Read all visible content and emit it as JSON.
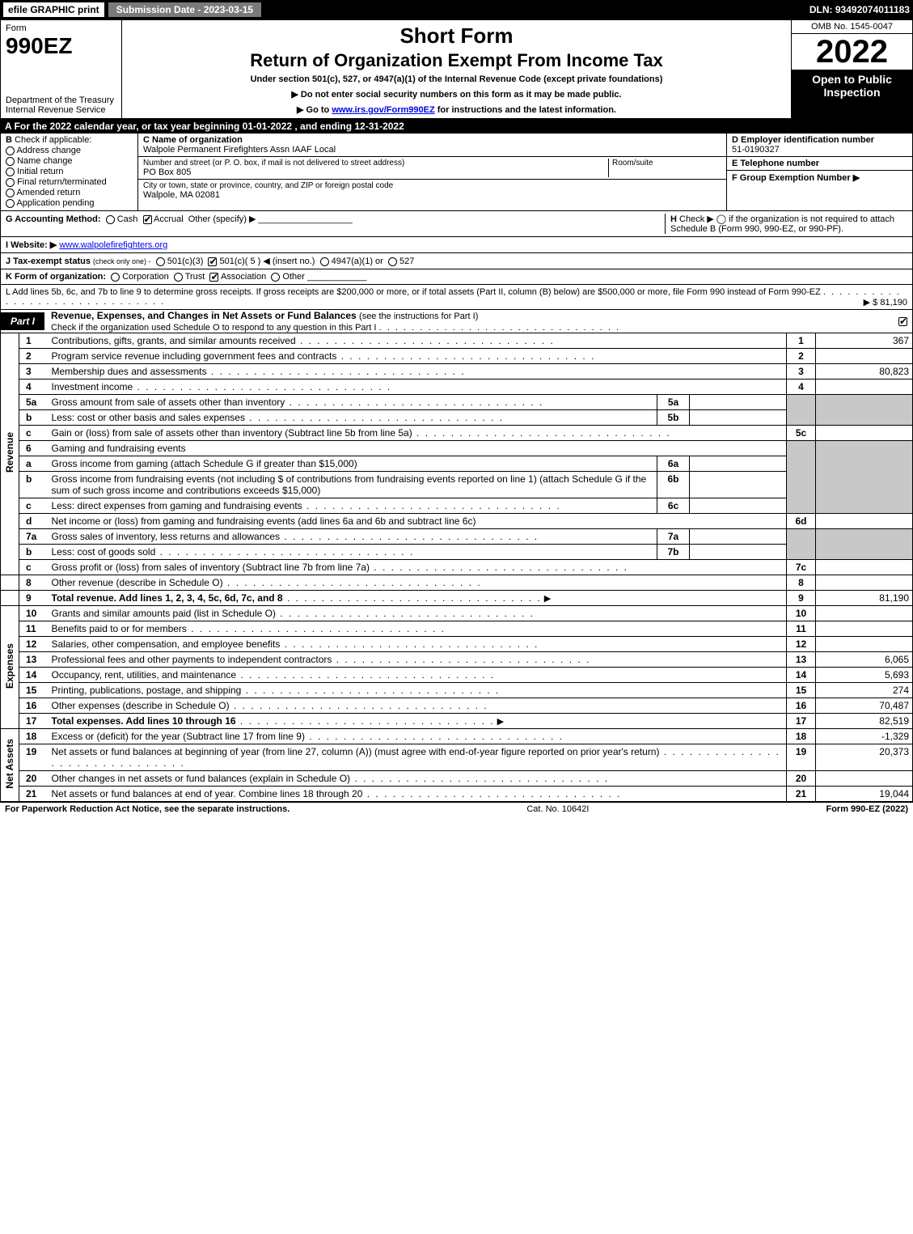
{
  "topbar": {
    "efile": "efile GRAPHIC print",
    "submission": "Submission Date - 2023-03-15",
    "dln": "DLN: 93492074011183"
  },
  "header": {
    "form_word": "Form",
    "form_number": "990EZ",
    "dept": "Department of the Treasury\nInternal Revenue Service",
    "short": "Short Form",
    "return": "Return of Organization Exempt From Income Tax",
    "under": "Under section 501(c), 527, or 4947(a)(1) of the Internal Revenue Code (except private foundations)",
    "warn": "▶ Do not enter social security numbers on this form as it may be made public.",
    "goto_pre": "▶ Go to ",
    "goto_link": "www.irs.gov/Form990EZ",
    "goto_post": " for instructions and the latest information.",
    "omb": "OMB No. 1545-0047",
    "year": "2022",
    "open": "Open to Public Inspection"
  },
  "rowA": "A  For the 2022 calendar year, or tax year beginning 01-01-2022 , and ending 12-31-2022",
  "B": {
    "hdr": "B",
    "hdr2": "Check if applicable:",
    "opts": [
      "Address change",
      "Name change",
      "Initial return",
      "Final return/terminated",
      "Amended return",
      "Application pending"
    ]
  },
  "C": {
    "name_lbl": "C Name of organization",
    "name": "Walpole Permanent Firefighters Assn IAAF Local",
    "street_lbl": "Number and street (or P. O. box, if mail is not delivered to street address)",
    "street": "PO Box 805",
    "room_lbl": "Room/suite",
    "city_lbl": "City or town, state or province, country, and ZIP or foreign postal code",
    "city": "Walpole, MA  02081"
  },
  "D": {
    "lbl": "D Employer identification number",
    "val": "51-0190327"
  },
  "E": {
    "lbl": "E Telephone number",
    "val": ""
  },
  "F": {
    "lbl": "F Group Exemption Number  ▶",
    "val": ""
  },
  "G": {
    "lbl": "G Accounting Method:",
    "cash": "Cash",
    "accrual": "Accrual",
    "other": "Other (specify) ▶"
  },
  "H": {
    "lbl": "H",
    "text": "Check ▶ ◯ if the organization is not required to attach Schedule B (Form 990, 990-EZ, or 990-PF)."
  },
  "I": {
    "lbl": "I Website: ▶",
    "val": "www.walpolefirefighters.org"
  },
  "J": {
    "lbl": "J Tax-exempt status",
    "sub": "(check only one) -",
    "opt1": "501(c)(3)",
    "opt2": "501(c)( 5 ) ◀ (insert no.)",
    "opt3": "4947(a)(1) or",
    "opt4": "527"
  },
  "K": {
    "lbl": "K Form of organization:",
    "opts": [
      "Corporation",
      "Trust",
      "Association",
      "Other"
    ]
  },
  "L": {
    "text": "L Add lines 5b, 6c, and 7b to line 9 to determine gross receipts. If gross receipts are $200,000 or more, or if total assets (Part II, column (B) below) are $500,000 or more, file Form 990 instead of Form 990-EZ",
    "val": "▶ $ 81,190"
  },
  "partI": {
    "tag": "Part I",
    "title": "Revenue, Expenses, and Changes in Net Assets or Fund Balances",
    "sub": "(see the instructions for Part I)",
    "check": "Check if the organization used Schedule O to respond to any question in this Part I"
  },
  "lines": {
    "1": {
      "desc": "Contributions, gifts, grants, and similar amounts received",
      "ln": "1",
      "amt": "367"
    },
    "2": {
      "desc": "Program service revenue including government fees and contracts",
      "ln": "2",
      "amt": ""
    },
    "3": {
      "desc": "Membership dues and assessments",
      "ln": "3",
      "amt": "80,823"
    },
    "4": {
      "desc": "Investment income",
      "ln": "4",
      "amt": ""
    },
    "5a": {
      "desc": "Gross amount from sale of assets other than inventory",
      "mini": "5a"
    },
    "5b": {
      "desc": "Less: cost or other basis and sales expenses",
      "mini": "5b"
    },
    "5c": {
      "desc": "Gain or (loss) from sale of assets other than inventory (Subtract line 5b from line 5a)",
      "ln": "5c",
      "amt": ""
    },
    "6": {
      "desc": "Gaming and fundraising events"
    },
    "6a": {
      "desc": "Gross income from gaming (attach Schedule G if greater than $15,000)",
      "mini": "6a"
    },
    "6b": {
      "desc": "Gross income from fundraising events (not including $              of contributions from fundraising events reported on line 1) (attach Schedule G if the sum of such gross income and contributions exceeds $15,000)",
      "mini": "6b"
    },
    "6c": {
      "desc": "Less: direct expenses from gaming and fundraising events",
      "mini": "6c"
    },
    "6d": {
      "desc": "Net income or (loss) from gaming and fundraising events (add lines 6a and 6b and subtract line 6c)",
      "ln": "6d",
      "amt": ""
    },
    "7a": {
      "desc": "Gross sales of inventory, less returns and allowances",
      "mini": "7a"
    },
    "7b": {
      "desc": "Less: cost of goods sold",
      "mini": "7b"
    },
    "7c": {
      "desc": "Gross profit or (loss) from sales of inventory (Subtract line 7b from line 7a)",
      "ln": "7c",
      "amt": ""
    },
    "8": {
      "desc": "Other revenue (describe in Schedule O)",
      "ln": "8",
      "amt": ""
    },
    "9": {
      "desc": "Total revenue. Add lines 1, 2, 3, 4, 5c, 6d, 7c, and 8",
      "ln": "9",
      "amt": "81,190",
      "bold": true,
      "arrow": true
    },
    "10": {
      "desc": "Grants and similar amounts paid (list in Schedule O)",
      "ln": "10",
      "amt": ""
    },
    "11": {
      "desc": "Benefits paid to or for members",
      "ln": "11",
      "amt": ""
    },
    "12": {
      "desc": "Salaries, other compensation, and employee benefits",
      "ln": "12",
      "amt": ""
    },
    "13": {
      "desc": "Professional fees and other payments to independent contractors",
      "ln": "13",
      "amt": "6,065"
    },
    "14": {
      "desc": "Occupancy, rent, utilities, and maintenance",
      "ln": "14",
      "amt": "5,693"
    },
    "15": {
      "desc": "Printing, publications, postage, and shipping",
      "ln": "15",
      "amt": "274"
    },
    "16": {
      "desc": "Other expenses (describe in Schedule O)",
      "ln": "16",
      "amt": "70,487"
    },
    "17": {
      "desc": "Total expenses. Add lines 10 through 16",
      "ln": "17",
      "amt": "82,519",
      "bold": true,
      "arrow": true
    },
    "18": {
      "desc": "Excess or (deficit) for the year (Subtract line 17 from line 9)",
      "ln": "18",
      "amt": "-1,329"
    },
    "19": {
      "desc": "Net assets or fund balances at beginning of year (from line 27, column (A)) (must agree with end-of-year figure reported on prior year's return)",
      "ln": "19",
      "amt": "20,373"
    },
    "20": {
      "desc": "Other changes in net assets or fund balances (explain in Schedule O)",
      "ln": "20",
      "amt": ""
    },
    "21": {
      "desc": "Net assets or fund balances at end of year. Combine lines 18 through 20",
      "ln": "21",
      "amt": "19,044"
    }
  },
  "sideLabels": {
    "rev": "Revenue",
    "exp": "Expenses",
    "na": "Net Assets"
  },
  "footer": {
    "left": "For Paperwork Reduction Act Notice, see the separate instructions.",
    "mid": "Cat. No. 10642I",
    "right": "Form 990-EZ (2022)"
  }
}
